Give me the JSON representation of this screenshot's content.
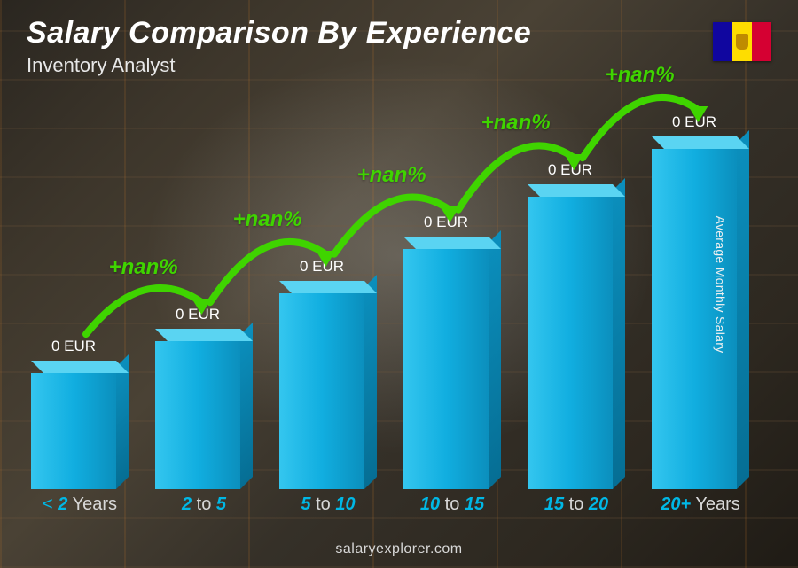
{
  "header": {
    "title": "Salary Comparison By Experience",
    "subtitle": "Inventory Analyst"
  },
  "flag": {
    "country": "Andorra",
    "stripes": [
      "#10069f",
      "#fedd00",
      "#d50032"
    ],
    "crest_color": "#bf8b00"
  },
  "axis_label": "Average Monthly Salary",
  "footer": "salaryexplorer.com",
  "chart": {
    "type": "bar-3d",
    "pct_color": "#3fd400",
    "arrow_stroke": "#3fd400",
    "xlabel_color": "#00b8e6",
    "xlabel_dimcolor": "#d8d8d8",
    "bar_colors": {
      "light": "#34c6ef",
      "mid": "#11aee0",
      "dark": "#0b8fbd",
      "dark2": "#066e94",
      "top": "#5ad4f2"
    },
    "categories": [
      {
        "label_pre": "< ",
        "label_bold": "2",
        "label_post": " Years",
        "height_pct": 32,
        "value": "0 EUR",
        "pct": null
      },
      {
        "label_pre": "",
        "label_bold": "2",
        "label_mid": " to ",
        "label_bold2": "5",
        "label_post": "",
        "height_pct": 40,
        "value": "0 EUR",
        "pct": "+nan%"
      },
      {
        "label_pre": "",
        "label_bold": "5",
        "label_mid": " to ",
        "label_bold2": "10",
        "label_post": "",
        "height_pct": 52,
        "value": "0 EUR",
        "pct": "+nan%"
      },
      {
        "label_pre": "",
        "label_bold": "10",
        "label_mid": " to ",
        "label_bold2": "15",
        "label_post": "",
        "height_pct": 63,
        "value": "0 EUR",
        "pct": "+nan%"
      },
      {
        "label_pre": "",
        "label_bold": "15",
        "label_mid": " to ",
        "label_bold2": "20",
        "label_post": "",
        "height_pct": 76,
        "value": "0 EUR",
        "pct": "+nan%"
      },
      {
        "label_pre": "",
        "label_bold": "20+",
        "label_post": " Years",
        "height_pct": 88,
        "value": "0 EUR",
        "pct": "+nan%"
      }
    ]
  }
}
